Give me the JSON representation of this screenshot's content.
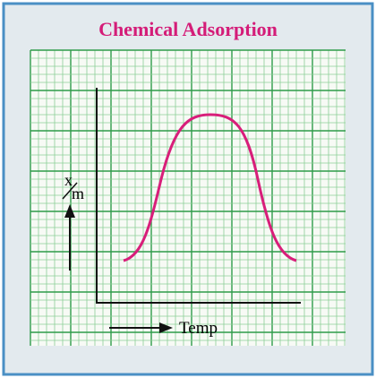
{
  "title": "Chemical Adsorption",
  "y_axis_label": {
    "numerator": "x",
    "denominator": "m"
  },
  "x_axis_label": "Temp"
}
